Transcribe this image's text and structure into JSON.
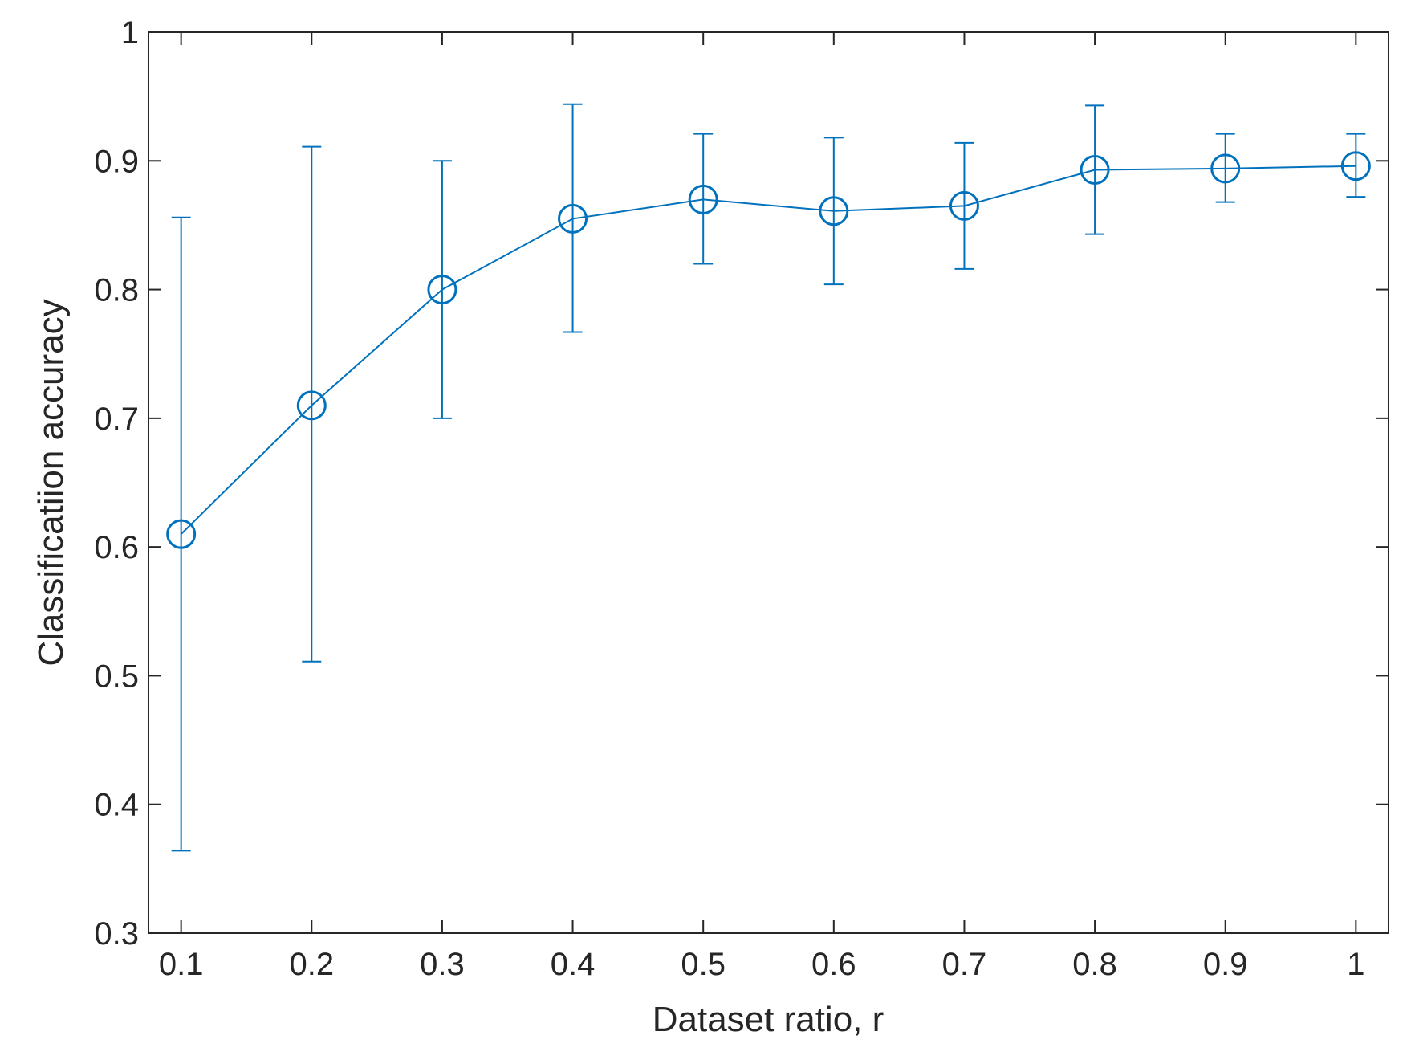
{
  "chart_data": {
    "type": "line",
    "xlabel": "Dataset ratio, r",
    "ylabel": "Classificatiion accuracy",
    "xlim": [
      0.075,
      1.025
    ],
    "ylim": [
      0.3,
      1.0
    ],
    "x_ticks": [
      "0.1",
      "0.2",
      "0.3",
      "0.4",
      "0.5",
      "0.6",
      "0.7",
      "0.8",
      "0.9",
      "1"
    ],
    "y_ticks": [
      "0.3",
      "0.4",
      "0.5",
      "0.6",
      "0.7",
      "0.8",
      "0.9",
      "1"
    ],
    "grid": false,
    "series": [
      {
        "color": "#0072BD",
        "marker": "circle",
        "x": [
          0.1,
          0.2,
          0.3,
          0.4,
          0.5,
          0.6,
          0.7,
          0.8,
          0.9,
          1.0
        ],
        "y": [
          0.61,
          0.71,
          0.8,
          0.855,
          0.87,
          0.861,
          0.865,
          0.893,
          0.894,
          0.896
        ],
        "error_upper": [
          0.856,
          0.911,
          0.9,
          0.944,
          0.921,
          0.918,
          0.914,
          0.943,
          0.921,
          0.921
        ],
        "error_lower": [
          0.364,
          0.511,
          0.7,
          0.767,
          0.82,
          0.804,
          0.816,
          0.843,
          0.868,
          0.872
        ]
      }
    ]
  }
}
